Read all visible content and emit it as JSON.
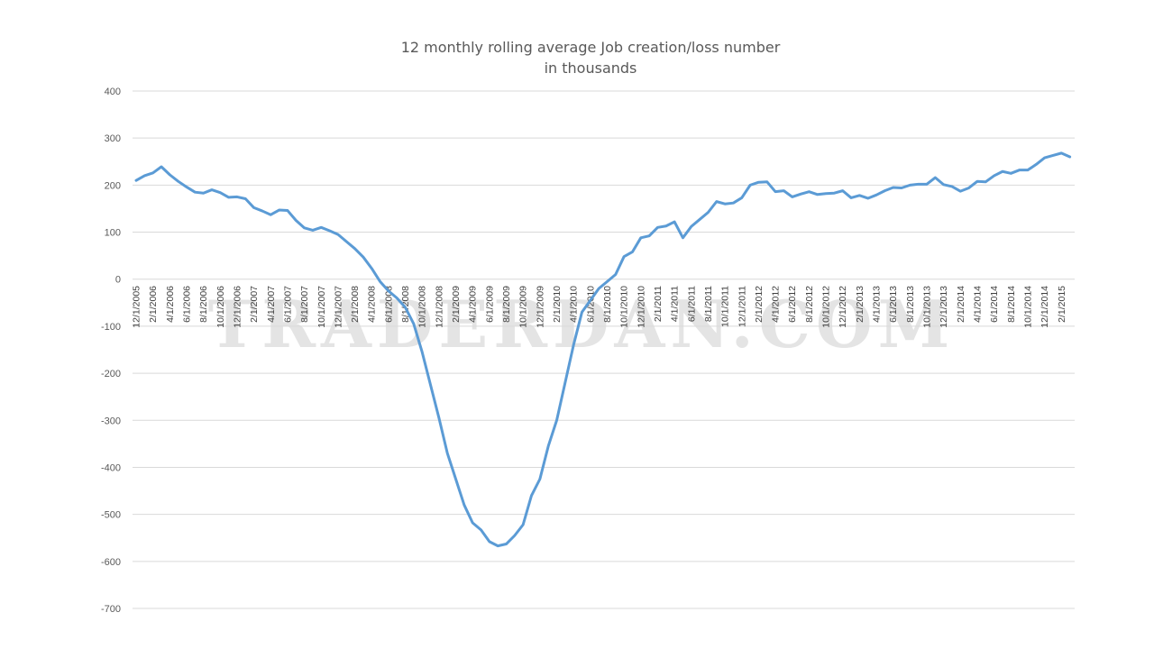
{
  "chart_data": {
    "type": "line",
    "title_lines": [
      "12 monthly rolling average Job creation/loss number",
      "in thousands"
    ],
    "xlabel": "",
    "ylabel": "",
    "ylim": [
      -700,
      400
    ],
    "y_ticks": [
      400,
      300,
      200,
      100,
      0,
      -100,
      -200,
      -300,
      -400,
      -500,
      -600,
      -700
    ],
    "grid": true,
    "line_color": "#5b9bd5",
    "watermark": "TRADERDAN.COM",
    "x_tick_labels": [
      "12/1/2005",
      "2/1/2006",
      "4/1/2006",
      "6/1/2006",
      "8/1/2006",
      "10/1/2006",
      "12/1/2006",
      "2/1/2007",
      "4/1/2007",
      "6/1/2007",
      "8/1/2007",
      "10/1/2007",
      "12/1/2007",
      "2/1/2008",
      "4/1/2008",
      "6/1/2008",
      "8/1/2008",
      "10/1/2008",
      "12/1/2008",
      "2/1/2009",
      "4/1/2009",
      "6/1/2009",
      "8/1/2009",
      "10/1/2009",
      "12/1/2009",
      "2/1/2010",
      "4/1/2010",
      "6/1/2010",
      "8/1/2010",
      "10/1/2010",
      "12/1/2010",
      "2/1/2011",
      "4/1/2011",
      "6/1/2011",
      "8/1/2011",
      "10/1/2011",
      "12/1/2011",
      "2/1/2012",
      "4/1/2012",
      "6/1/2012",
      "8/1/2012",
      "10/1/2012",
      "12/1/2012",
      "2/1/2013",
      "4/1/2013",
      "6/1/2013",
      "8/1/2013",
      "10/1/2013",
      "12/1/2013",
      "2/1/2014",
      "4/1/2014",
      "6/1/2014",
      "8/1/2014",
      "10/1/2014",
      "12/1/2014",
      "2/1/2015"
    ],
    "series": [
      {
        "x_start": "12/1/2005",
        "x_end": "3/1/2015",
        "frequency": "monthly",
        "values": [
          210,
          220,
          226,
          239,
          222,
          208,
          196,
          185,
          183,
          190,
          184,
          174,
          175,
          171,
          152,
          145,
          137,
          147,
          146,
          125,
          109,
          104,
          110,
          103,
          95,
          80,
          65,
          47,
          23,
          -5,
          -25,
          -40,
          -60,
          -95,
          -155,
          -225,
          -295,
          -370,
          -425,
          -480,
          -518,
          -533,
          -558,
          -567,
          -563,
          -545,
          -522,
          -460,
          -425,
          -355,
          -300,
          -220,
          -140,
          -70,
          -45,
          -20,
          -5,
          10,
          48,
          58,
          88,
          92,
          110,
          113,
          122,
          88,
          112,
          127,
          142,
          165,
          160,
          162,
          173,
          200,
          206,
          207,
          186,
          188,
          175,
          181,
          186,
          180,
          182,
          183,
          188,
          173,
          178,
          172,
          179,
          188,
          195,
          194,
          200,
          202,
          202,
          216,
          201,
          197,
          187,
          194,
          208,
          207,
          220,
          229,
          225,
          232,
          232,
          244,
          258,
          263,
          268,
          260
        ]
      }
    ]
  }
}
